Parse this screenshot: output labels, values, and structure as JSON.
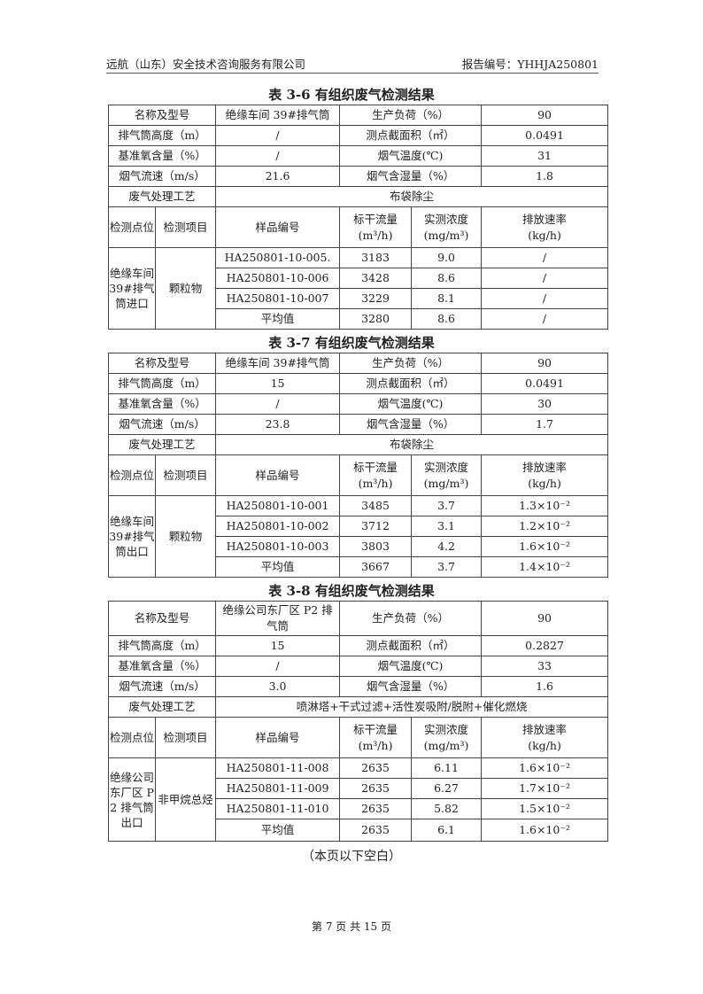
{
  "header": {
    "company": "远航（山东）安全技术咨询服务有限公司",
    "report_no": "报告编号：YHHJA250801"
  },
  "labels": {
    "name_model": "名称及型号",
    "production_load": "生产负荷（%）",
    "stack_height": "排气筒高度（m）",
    "section_area": "测点截面积（㎡）",
    "ref_oxygen": "基准氧含量（%）",
    "gas_temp": "烟气温度(℃)",
    "gas_velocity": "烟气流速（m/s）",
    "gas_moisture": "烟气含湿量（%）",
    "treatment": "废气处理工艺",
    "location": "检测点位",
    "item": "检测项目",
    "sample_no": "样品编号",
    "flow": "标干流量\n(m³/h)",
    "conc": "实测浓度\n(mg/m³)",
    "rate": "排放速率\n(kg/h)",
    "average": "平均值"
  },
  "tables": [
    {
      "title": "表 3-6 有组织废气检测结果",
      "name": "绝缘车间 39#排气筒",
      "load": "90",
      "height": "/",
      "area": "0.0491",
      "oxygen": "/",
      "temp": "31",
      "velocity": "21.6",
      "moisture": "1.8",
      "treatment": "布袋除尘",
      "location": "绝缘车间 39#排气筒进口",
      "item": "颗粒物",
      "rows": [
        {
          "sample": "HA250801-10-005.",
          "flow": "3183",
          "conc": "9.0",
          "rate": "/"
        },
        {
          "sample": "HA250801-10-006",
          "flow": "3428",
          "conc": "8.6",
          "rate": "/"
        },
        {
          "sample": "HA250801-10-007",
          "flow": "3229",
          "conc": "8.1",
          "rate": "/"
        }
      ],
      "avg": {
        "flow": "3280",
        "conc": "8.6",
        "rate": "/"
      }
    },
    {
      "title": "表 3-7 有组织废气检测结果",
      "name": "绝缘车间 39#排气筒",
      "load": "90",
      "height": "15",
      "area": "0.0491",
      "oxygen": "/",
      "temp": "30",
      "velocity": "23.8",
      "moisture": "1.7",
      "treatment": "布袋除尘",
      "location": "绝缘车间 39#排气筒出口",
      "item": "颗粒物",
      "rows": [
        {
          "sample": "HA250801-10-001",
          "flow": "3485",
          "conc": "3.7",
          "rate": "1.3×10⁻²"
        },
        {
          "sample": "HA250801-10-002",
          "flow": "3712",
          "conc": "3.1",
          "rate": "1.2×10⁻²"
        },
        {
          "sample": "HA250801-10-003",
          "flow": "3803",
          "conc": "4.2",
          "rate": "1.6×10⁻²"
        }
      ],
      "avg": {
        "flow": "3667",
        "conc": "3.7",
        "rate": "1.4×10⁻²"
      }
    },
    {
      "title": "表 3-8 有组织废气检测结果",
      "name": "绝缘公司东厂区 P2 排气筒",
      "load": "90",
      "height": "15",
      "area": "0.2827",
      "oxygen": "/",
      "temp": "33",
      "velocity": "3.0",
      "moisture": "1.6",
      "treatment": "喷淋塔+干式过滤+活性炭吸附/脱附+催化燃烧",
      "location": "绝缘公司东厂区 P2 排气筒出口",
      "item": "非甲烷总烃",
      "rows": [
        {
          "sample": "HA250801-11-008",
          "flow": "2635",
          "conc": "6.11",
          "rate": "1.6×10⁻²"
        },
        {
          "sample": "HA250801-11-009",
          "flow": "2635",
          "conc": "6.27",
          "rate": "1.7×10⁻²"
        },
        {
          "sample": "HA250801-11-010",
          "flow": "2635",
          "conc": "5.82",
          "rate": "1.5×10⁻²"
        }
      ],
      "avg": {
        "flow": "2635",
        "conc": "6.1",
        "rate": "1.6×10⁻²"
      }
    }
  ],
  "blank_note": "（本页以下空白）",
  "page_footer": "第 7 页 共 15 页"
}
